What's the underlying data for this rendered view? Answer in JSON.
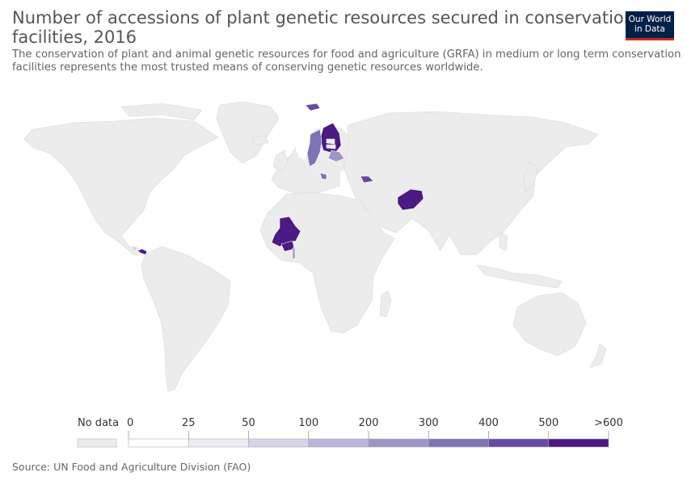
{
  "header": {
    "title_line1": "Number of accessions of plant genetic resources secured in conservation",
    "title_line2": "facilities, 2016",
    "subtitle_line1": "The conservation of plant and animal genetic resources for food and agriculture (GRFA) in medium or long term conservation",
    "subtitle_line2": "facilities represents the most trusted means of conserving genetic resources worldwide."
  },
  "logo": {
    "line1": "Our World",
    "line2": "in Data"
  },
  "footer": {
    "source": "Source: UN Food and Agriculture Division (FAO)"
  },
  "colors": {
    "no_data": "#ececec",
    "border": "#ffffff",
    "bins": [
      "#ffffff",
      "#ececf4",
      "#d6d5e7",
      "#b9b6d9",
      "#9c96c8",
      "#7d73b5",
      "#6549a3",
      "#4b1a85"
    ]
  },
  "chart_data": {
    "type": "choropleth",
    "year": 2016,
    "legend": {
      "no_data_label": "No data",
      "thresholds": [
        "0",
        "25",
        "50",
        "100",
        "200",
        "300",
        "400",
        "500",
        ">600"
      ]
    },
    "countries": [
      {
        "name": "Finland",
        "bin": 7
      },
      {
        "name": "Sweden",
        "bin": 5
      },
      {
        "name": "Norway",
        "bin": 0
      },
      {
        "name": "Svalbard",
        "bin": 6
      },
      {
        "name": "Belarus",
        "bin": 4
      },
      {
        "name": "Estonia",
        "bin": 1
      },
      {
        "name": "Latvia",
        "bin": 1
      },
      {
        "name": "Bosnia and Herzegovina",
        "bin": 5
      },
      {
        "name": "Georgia",
        "bin": 6
      },
      {
        "name": "Afghanistan",
        "bin": 7
      },
      {
        "name": "Mali",
        "bin": 7
      },
      {
        "name": "Burkina Faso",
        "bin": 7
      },
      {
        "name": "Togo",
        "bin": 4
      },
      {
        "name": "Panama",
        "bin": 7
      },
      {
        "name": "Costa Rica",
        "bin": 2
      }
    ]
  }
}
